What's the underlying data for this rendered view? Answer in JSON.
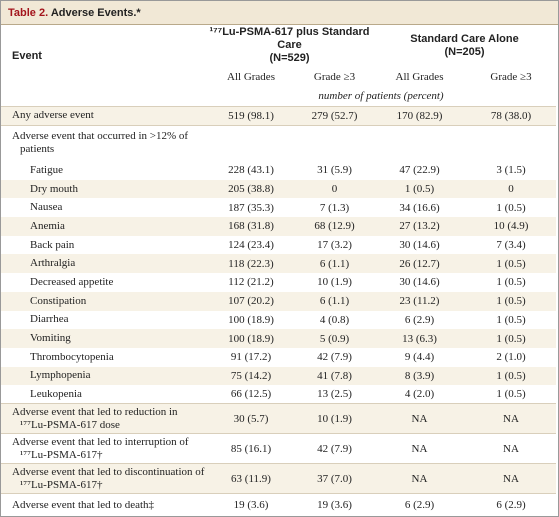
{
  "header": {
    "label": "Table 2.",
    "title": "Adverse Events.*"
  },
  "table": {
    "columns": {
      "event": "Event",
      "groups": [
        {
          "name": "¹⁷⁷Lu-PSMA-617 plus Standard Care",
          "n": "(N=529)"
        },
        {
          "name": "Standard Care Alone",
          "n": "(N=205)"
        }
      ],
      "subheaders": [
        "All Grades",
        "Grade ≥3",
        "All Grades",
        "Grade ≥3"
      ],
      "units": "number of patients (percent)"
    },
    "rows": [
      {
        "label": "Any adverse event",
        "indent": false,
        "cells": [
          "519 (98.1)",
          "279 (52.7)",
          "170 (82.9)",
          "78 (38.0)"
        ]
      },
      {
        "label": "Adverse event that occurred in >12% of patients",
        "indent": false,
        "cells": []
      },
      {
        "label": "Fatigue",
        "indent": true,
        "cells": [
          "228 (43.1)",
          "31 (5.9)",
          "47 (22.9)",
          "3 (1.5)"
        ]
      },
      {
        "label": "Dry mouth",
        "indent": true,
        "cells": [
          "205 (38.8)",
          "0",
          "1 (0.5)",
          "0"
        ]
      },
      {
        "label": "Nausea",
        "indent": true,
        "cells": [
          "187 (35.3)",
          "7 (1.3)",
          "34 (16.6)",
          "1 (0.5)"
        ]
      },
      {
        "label": "Anemia",
        "indent": true,
        "cells": [
          "168 (31.8)",
          "68 (12.9)",
          "27 (13.2)",
          "10 (4.9)"
        ]
      },
      {
        "label": "Back pain",
        "indent": true,
        "cells": [
          "124 (23.4)",
          "17 (3.2)",
          "30 (14.6)",
          "7 (3.4)"
        ]
      },
      {
        "label": "Arthralgia",
        "indent": true,
        "cells": [
          "118 (22.3)",
          "6 (1.1)",
          "26 (12.7)",
          "1 (0.5)"
        ]
      },
      {
        "label": "Decreased appetite",
        "indent": true,
        "cells": [
          "112 (21.2)",
          "10 (1.9)",
          "30 (14.6)",
          "1 (0.5)"
        ]
      },
      {
        "label": "Constipation",
        "indent": true,
        "cells": [
          "107 (20.2)",
          "6 (1.1)",
          "23 (11.2)",
          "1 (0.5)"
        ]
      },
      {
        "label": "Diarrhea",
        "indent": true,
        "cells": [
          "100 (18.9)",
          "4 (0.8)",
          "6 (2.9)",
          "1 (0.5)"
        ]
      },
      {
        "label": "Vomiting",
        "indent": true,
        "cells": [
          "100 (18.9)",
          "5 (0.9)",
          "13 (6.3)",
          "1 (0.5)"
        ]
      },
      {
        "label": "Thrombocytopenia",
        "indent": true,
        "cells": [
          "91 (17.2)",
          "42 (7.9)",
          "9 (4.4)",
          "2 (1.0)"
        ]
      },
      {
        "label": "Lymphopenia",
        "indent": true,
        "cells": [
          "75 (14.2)",
          "41 (7.8)",
          "8 (3.9)",
          "1 (0.5)"
        ]
      },
      {
        "label": "Leukopenia",
        "indent": true,
        "cells": [
          "66 (12.5)",
          "13 (2.5)",
          "4 (2.0)",
          "1 (0.5)"
        ]
      },
      {
        "label": "Adverse event that led to reduction in ¹⁷⁷Lu-PSMA-617 dose",
        "indent": false,
        "cells": [
          "30 (5.7)",
          "10 (1.9)",
          "NA",
          "NA"
        ]
      },
      {
        "label": "Adverse event that led to interruption of ¹⁷⁷Lu-PSMA-617†",
        "indent": false,
        "cells": [
          "85 (16.1)",
          "42 (7.9)",
          "NA",
          "NA"
        ]
      },
      {
        "label": "Adverse event that led to discontinuation of ¹⁷⁷Lu-PSMA-617†",
        "indent": false,
        "cells": [
          "63 (11.9)",
          "37 (7.0)",
          "NA",
          "NA"
        ]
      },
      {
        "label": "Adverse event that led to death‡",
        "indent": false,
        "cells": [
          "19 (3.6)",
          "19 (3.6)",
          "6 (2.9)",
          "6 (2.9)"
        ]
      }
    ]
  }
}
